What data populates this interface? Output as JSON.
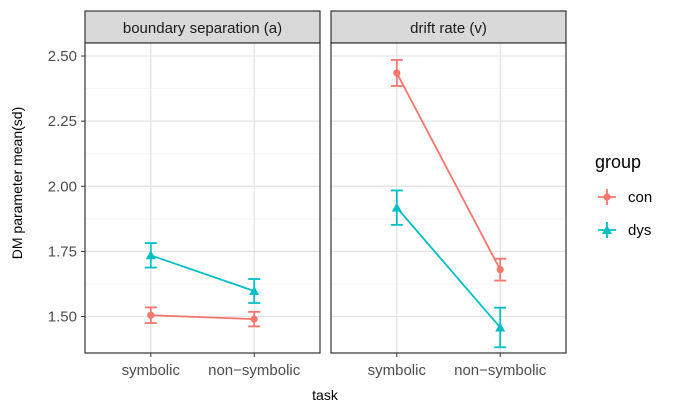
{
  "chart_data": {
    "type": "line",
    "facets": [
      "boundary separation (a)",
      "drift rate (v)"
    ],
    "categories": [
      "symbolic",
      "non−symbolic"
    ],
    "xlabel": "task",
    "ylabel": "DM parameter mean(sd)",
    "ylim": [
      1.36,
      2.55
    ],
    "yticks": [
      "1.50",
      "1.75",
      "2.00",
      "2.25",
      "2.50"
    ],
    "ytick_values": [
      1.5,
      1.75,
      2.0,
      2.25,
      2.5
    ],
    "grid": true,
    "legend": {
      "title": "group",
      "placement": "right",
      "entries": [
        "con",
        "dys"
      ]
    },
    "series": [
      {
        "name": "con",
        "color": "#F8766D",
        "marker": "circle",
        "panels": [
          {
            "values": [
              1.505,
              1.49
            ],
            "lower": [
              1.475,
              1.462
            ],
            "upper": [
              1.535,
              1.518
            ]
          },
          {
            "values": [
              2.435,
              1.68
            ],
            "lower": [
              2.385,
              1.638
            ],
            "upper": [
              2.485,
              1.722
            ]
          }
        ]
      },
      {
        "name": "dys",
        "color": "#00BFC4",
        "marker": "triangle",
        "panels": [
          {
            "values": [
              1.735,
              1.598
            ],
            "lower": [
              1.688,
              1.552
            ],
            "upper": [
              1.782,
              1.644
            ]
          },
          {
            "values": [
              1.918,
              1.458
            ],
            "lower": [
              1.852,
              1.382
            ],
            "upper": [
              1.984,
              1.534
            ]
          }
        ]
      }
    ]
  }
}
